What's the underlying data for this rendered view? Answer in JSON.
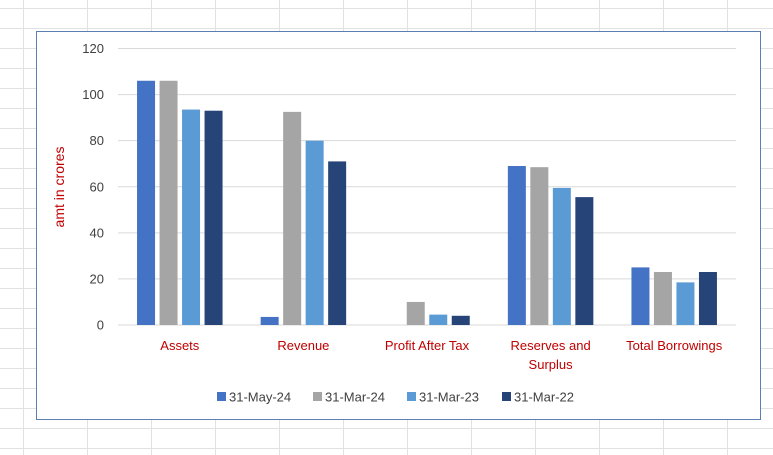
{
  "chart_data": {
    "type": "bar",
    "title": "",
    "xlabel": "",
    "ylabel": "amt in crores",
    "ylim": [
      0,
      120
    ],
    "yticks": [
      0,
      20,
      40,
      60,
      80,
      100,
      120
    ],
    "grid": true,
    "legend_position": "bottom",
    "categories": [
      [
        "Assets"
      ],
      [
        "Revenue"
      ],
      [
        "Profit After Tax"
      ],
      [
        "Reserves and",
        "Surplus"
      ],
      [
        "Total Borrowings"
      ]
    ],
    "series": [
      {
        "name": "31-May-24",
        "color": "#4472c4",
        "values": [
          106,
          3.5,
          0,
          69,
          25
        ]
      },
      {
        "name": "31-Mar-24",
        "color": "#a5a5a5",
        "values": [
          106,
          92.5,
          10,
          68.5,
          23
        ]
      },
      {
        "name": "31-Mar-23",
        "color": "#5b9bd5",
        "values": [
          93.5,
          80,
          4.5,
          59.5,
          18.5
        ]
      },
      {
        "name": "31-Mar-22",
        "color": "#264478",
        "values": [
          93,
          71,
          4,
          55.5,
          23
        ]
      }
    ],
    "label_color": "#c00000"
  }
}
